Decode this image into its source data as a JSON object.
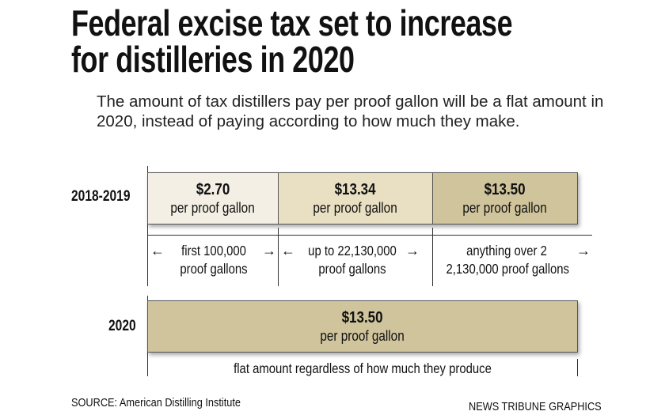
{
  "title": [
    "Federal excise tax set to increase",
    "for distilleries in 2020"
  ],
  "subtitle": "The amount of tax distillers pay per proof gallon will be a flat amount in 2020, instead of paying according to how much they make.",
  "rows": {
    "current": {
      "label": "2018-2019",
      "tiers": [
        {
          "amount": "$2.70",
          "unit": "per proof gallon",
          "range": [
            "first 100,000",
            "proof gallons"
          ],
          "color": "#f3efe4"
        },
        {
          "amount": "$13.34",
          "unit": "per proof gallon",
          "range": [
            "up to 22,130,000",
            "proof gallons"
          ],
          "color": "#e9dfc2"
        },
        {
          "amount": "$13.50",
          "unit": "per proof gallon",
          "range": [
            "anything over 2",
            "2,130,000 proof gallons"
          ],
          "color": "#cfc49c"
        }
      ]
    },
    "future": {
      "label": "2020",
      "amount": "$13.50",
      "unit": "per proof gallon",
      "range": "flat amount regardless of how much they produce",
      "color": "#cfc49c"
    }
  },
  "source": "SOURCE: American Distilling Institute",
  "credit": "NEWS TRIBUNE GRAPHICS"
}
